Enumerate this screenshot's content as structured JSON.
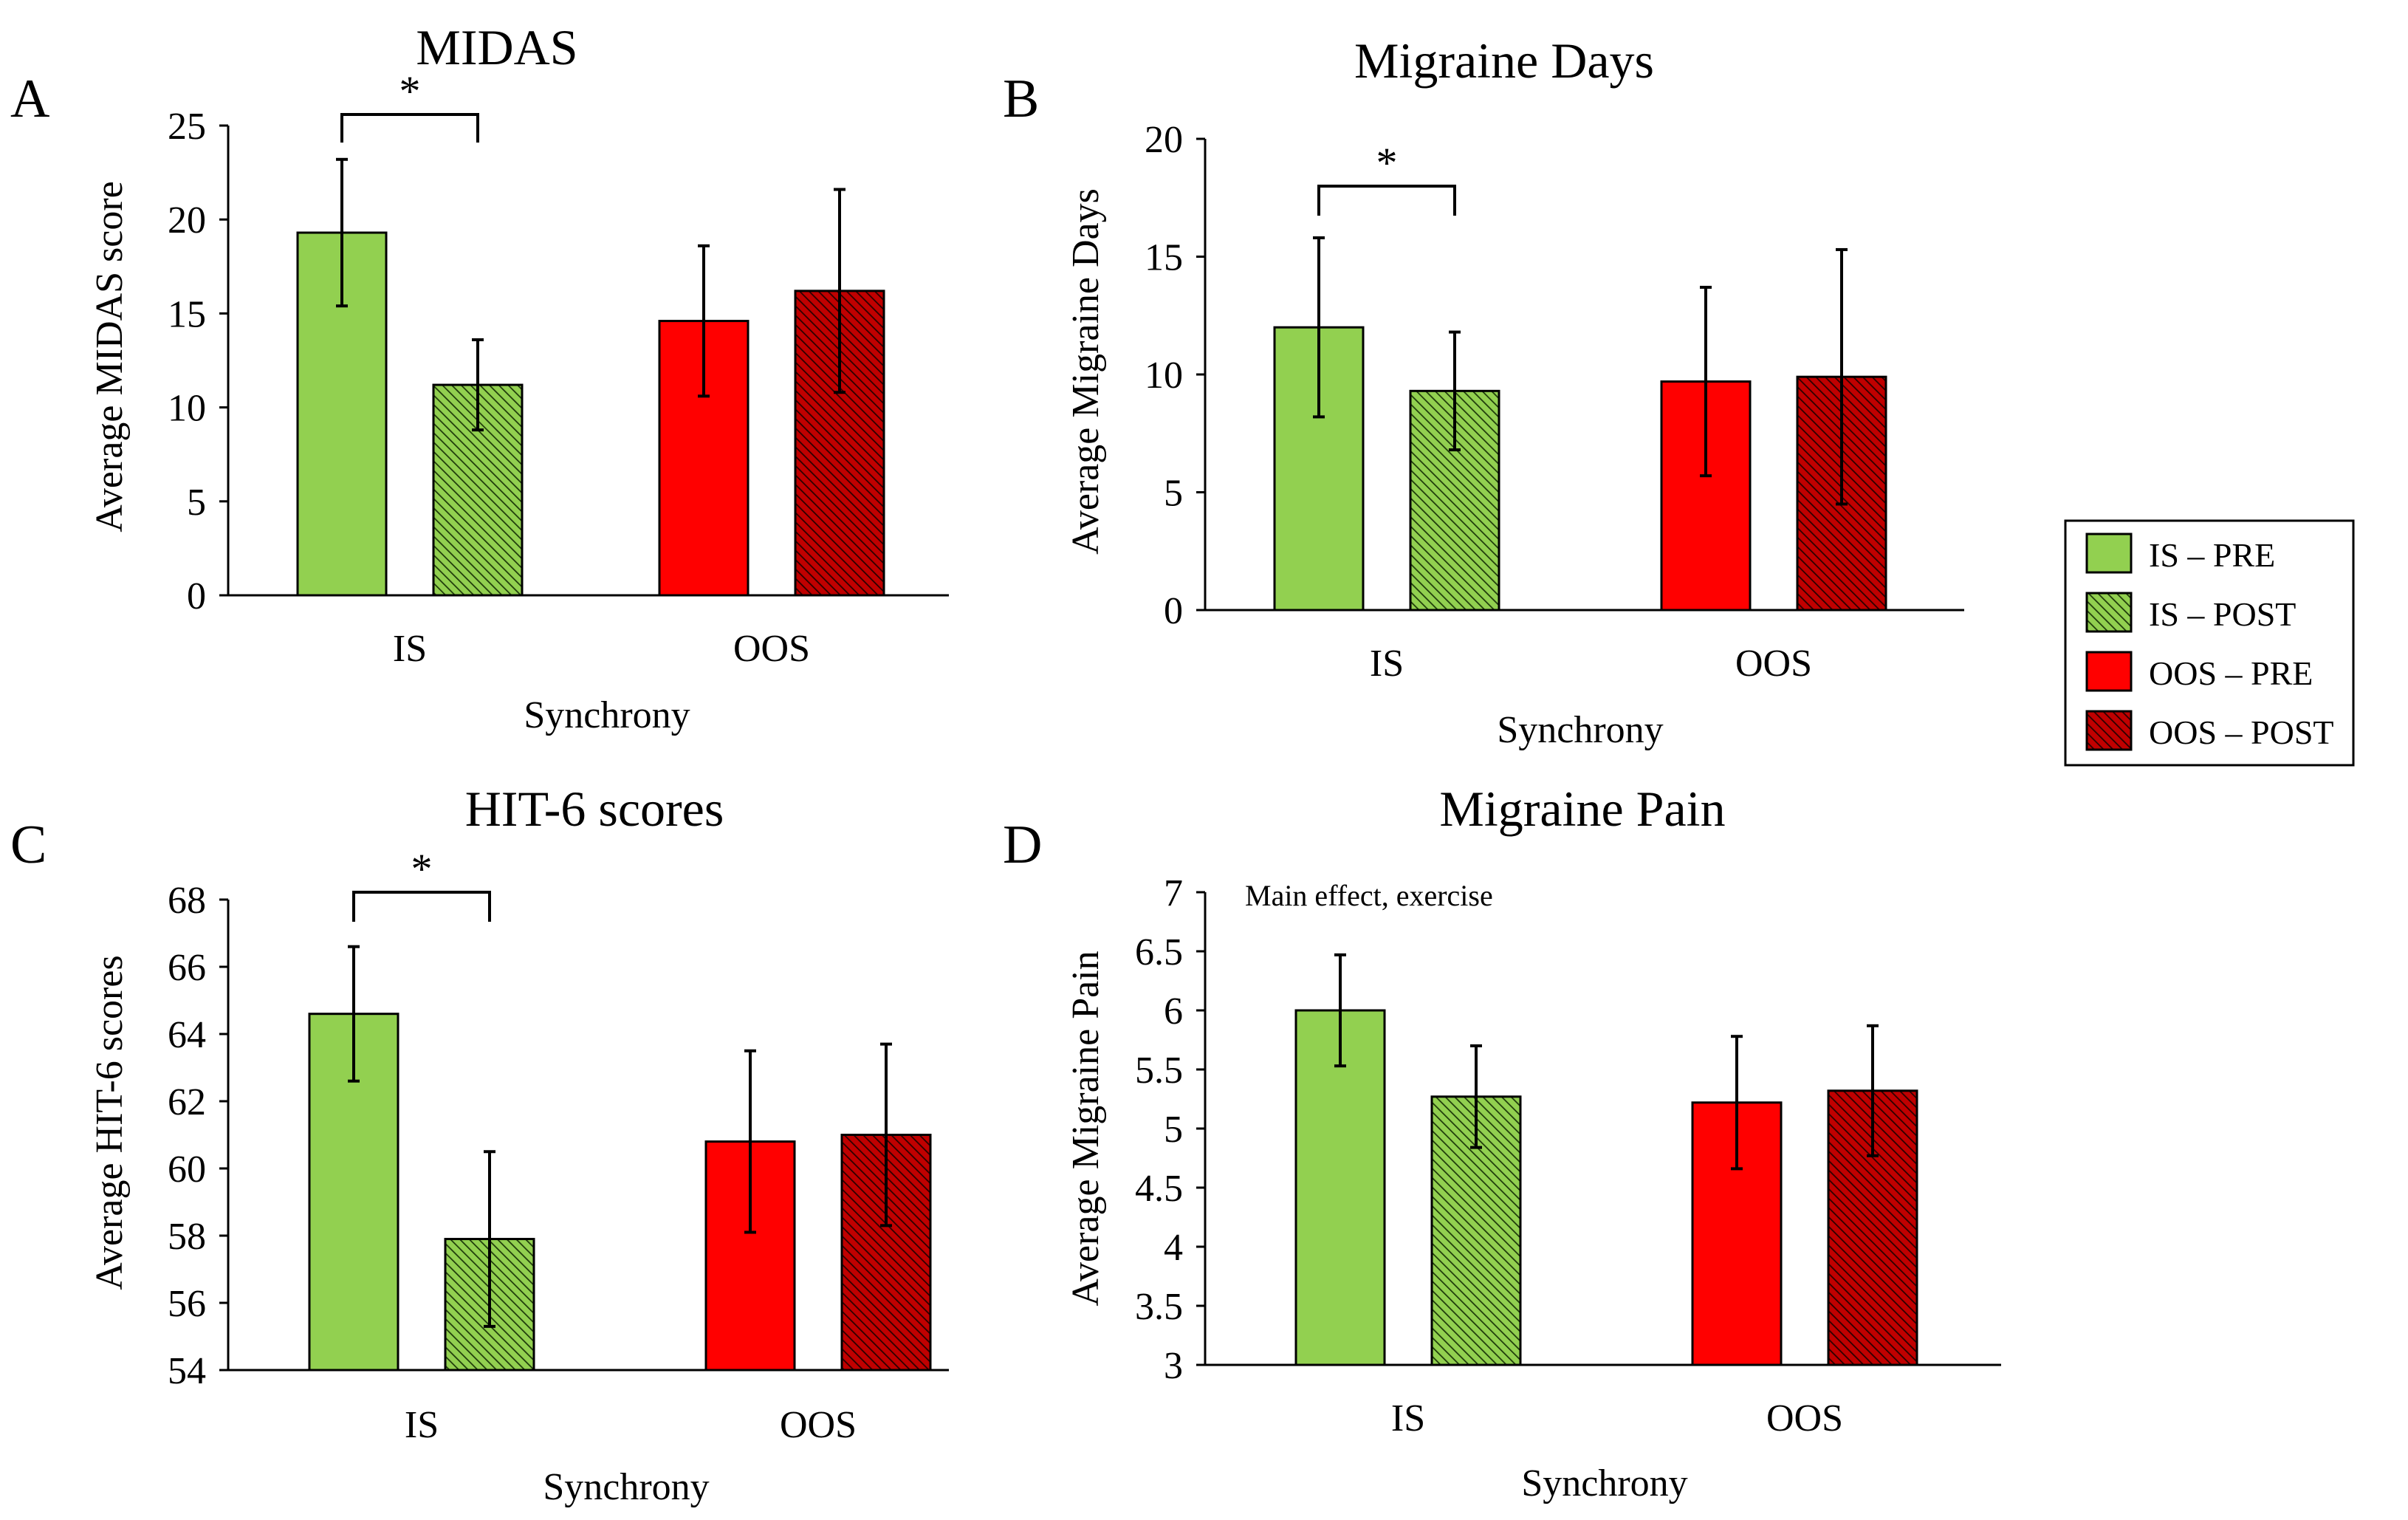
{
  "colors": {
    "is_pre": "#92d050",
    "is_post_bg": "#92d050",
    "is_post_hatch": "#1e3a0a",
    "oos_pre": "#ff0000",
    "oos_post_bg": "#c00000",
    "oos_post_hatch": "#2a0000",
    "stroke": "#000000"
  },
  "legend": {
    "items": [
      {
        "key": "is_pre",
        "label": "IS – PRE"
      },
      {
        "key": "is_post",
        "label": "IS – POST"
      },
      {
        "key": "oos_pre",
        "label": "OOS – PRE"
      },
      {
        "key": "oos_post",
        "label": "OOS – POST"
      }
    ]
  },
  "chart_data": [
    {
      "panel": "A",
      "type": "bar",
      "title": "MIDAS",
      "xlabel": "Synchrony",
      "ylabel": "Average MIDAS score",
      "categories": [
        "IS",
        "OOS"
      ],
      "ylim": [
        0,
        25
      ],
      "yticks": [
        "0",
        "5",
        "10",
        "15",
        "20",
        "25"
      ],
      "series": [
        {
          "name": "IS – PRE",
          "key": "is_pre",
          "group": 0,
          "value": 19.3,
          "err": 3.9
        },
        {
          "name": "IS – POST",
          "key": "is_post",
          "group": 0,
          "value": 11.2,
          "err": 2.4
        },
        {
          "name": "OOS – PRE",
          "key": "oos_pre",
          "group": 1,
          "value": 14.6,
          "err": 4.0
        },
        {
          "name": "OOS – POST",
          "key": "oos_post",
          "group": 1,
          "value": 16.2,
          "err": 5.4
        }
      ],
      "significance": {
        "group": 0,
        "label": "*"
      },
      "annotation": ""
    },
    {
      "panel": "B",
      "type": "bar",
      "title": "Migraine Days",
      "xlabel": "Synchrony",
      "ylabel": "Average Migraine Days",
      "categories": [
        "IS",
        "OOS"
      ],
      "ylim": [
        0,
        20
      ],
      "yticks": [
        "0",
        "5",
        "10",
        "15",
        "20"
      ],
      "series": [
        {
          "name": "IS – PRE",
          "key": "is_pre",
          "group": 0,
          "value": 12.0,
          "err": 3.8
        },
        {
          "name": "IS – POST",
          "key": "is_post",
          "group": 0,
          "value": 9.3,
          "err": 2.5
        },
        {
          "name": "OOS – PRE",
          "key": "oos_pre",
          "group": 1,
          "value": 9.7,
          "err": 4.0
        },
        {
          "name": "OOS – POST",
          "key": "oos_post",
          "group": 1,
          "value": 9.9,
          "err": 5.4
        }
      ],
      "significance": {
        "group": 0,
        "label": "*"
      },
      "annotation": ""
    },
    {
      "panel": "C",
      "type": "bar",
      "title": "HIT-6 scores",
      "xlabel": "Synchrony",
      "ylabel": "Average HIT-6 scores",
      "categories": [
        "IS",
        "OOS"
      ],
      "ylim": [
        54,
        68
      ],
      "yticks": [
        "54",
        "56",
        "58",
        "60",
        "62",
        "64",
        "66",
        "68"
      ],
      "series": [
        {
          "name": "IS – PRE",
          "key": "is_pre",
          "group": 0,
          "value": 64.6,
          "err": 2.0
        },
        {
          "name": "IS – POST",
          "key": "is_post",
          "group": 0,
          "value": 57.9,
          "err": 2.6
        },
        {
          "name": "OOS – PRE",
          "key": "oos_pre",
          "group": 1,
          "value": 60.8,
          "err": 2.7
        },
        {
          "name": "OOS – POST",
          "key": "oos_post",
          "group": 1,
          "value": 61.0,
          "err": 2.7
        }
      ],
      "significance": {
        "group": 0,
        "label": "*"
      },
      "annotation": ""
    },
    {
      "panel": "D",
      "type": "bar",
      "title": "Migraine Pain",
      "xlabel": "Synchrony",
      "ylabel": "Average Migraine Pain",
      "categories": [
        "IS",
        "OOS"
      ],
      "ylim": [
        3,
        7
      ],
      "yticks": [
        "3",
        "3.5",
        "4",
        "4.5",
        "5",
        "5.5",
        "6",
        "6.5",
        "7"
      ],
      "series": [
        {
          "name": "IS – PRE",
          "key": "is_pre",
          "group": 0,
          "value": 6.0,
          "err": 0.47
        },
        {
          "name": "IS – POST",
          "key": "is_post",
          "group": 0,
          "value": 5.27,
          "err": 0.43
        },
        {
          "name": "OOS – PRE",
          "key": "oos_pre",
          "group": 1,
          "value": 5.22,
          "err": 0.56
        },
        {
          "name": "OOS – POST",
          "key": "oos_post",
          "group": 1,
          "value": 5.32,
          "err": 0.55
        }
      ],
      "significance": null,
      "annotation": "Main effect, exercise"
    }
  ]
}
